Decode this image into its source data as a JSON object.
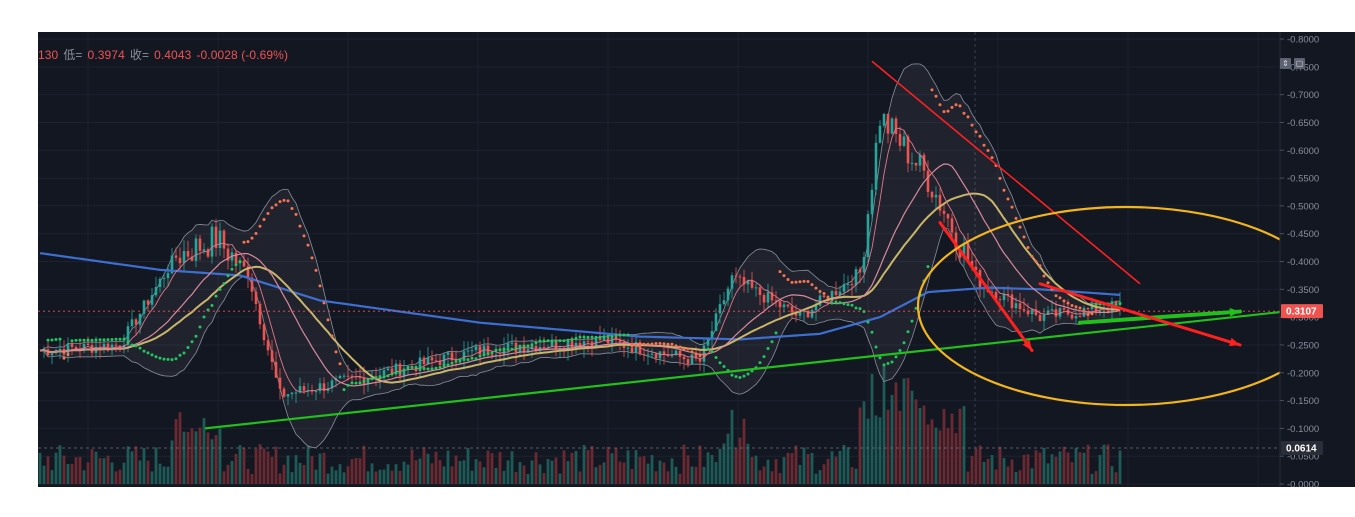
{
  "legend": {
    "open_partial": "130",
    "low_label": "低=",
    "low_value": "0.3974",
    "close_label": "收=",
    "close_value": "0.4043",
    "change": "-0.0028 (-0.69%)"
  },
  "pane_buttons": [
    "⇕",
    "▢"
  ],
  "price_badge": {
    "value": "0.3107",
    "color": "#ef5350"
  },
  "volume_badge": {
    "value": "0.0614",
    "color": "#2a2e39"
  },
  "colors": {
    "background": "#131722",
    "up": "#26a69a",
    "down": "#ef5350",
    "ma_long": "#3d6fd1",
    "ma_mid": "#c9b56a",
    "ma_short": "#d88a9a",
    "bollinger": "#8a8f9c",
    "support_line": "#21c01b",
    "trend_arrow": "#ff2020",
    "ellipse": "#f2b51b"
  },
  "chart_data": {
    "type": "candlestick",
    "title": "",
    "y_axis": {
      "ticks": [
        "0.8000",
        "0.7500",
        "0.7000",
        "0.6500",
        "0.6000",
        "0.5500",
        "0.5000",
        "0.4500",
        "0.4000",
        "0.3500",
        "0.3000",
        "0.2500",
        "0.2000",
        "0.1500",
        "0.1000",
        "0.0500",
        "0.0000"
      ],
      "range": [
        0.0,
        0.8
      ]
    },
    "last_price": 0.3107,
    "volume_marker": 0.0614,
    "series": [
      {
        "name": "",
        "type": "ohlc",
        "key_points": [
          {
            "t": 0,
            "close": 0.24
          },
          {
            "t": 20,
            "close": 0.25
          },
          {
            "t": 34,
            "close": 0.41
          },
          {
            "t": 44,
            "close": 0.44
          },
          {
            "t": 52,
            "close": 0.38
          },
          {
            "t": 60,
            "close": 0.16
          },
          {
            "t": 80,
            "close": 0.19
          },
          {
            "t": 110,
            "close": 0.24
          },
          {
            "t": 140,
            "close": 0.26
          },
          {
            "t": 165,
            "close": 0.22
          },
          {
            "t": 173,
            "close": 0.37
          },
          {
            "t": 190,
            "close": 0.3
          },
          {
            "t": 205,
            "close": 0.38
          },
          {
            "t": 210,
            "close": 0.66
          },
          {
            "t": 222,
            "close": 0.55
          },
          {
            "t": 235,
            "close": 0.36
          },
          {
            "t": 250,
            "close": 0.3
          },
          {
            "t": 270,
            "close": 0.32
          }
        ]
      }
    ],
    "annotations": {
      "support_line": {
        "from": [
          0,
          0.1
        ],
        "to": [
          300,
          0.31
        ]
      },
      "trend_line": {
        "from": [
          208,
          0.76
        ],
        "to": [
          275,
          0.36
        ]
      },
      "arrow_down_steep": {
        "from": [
          225,
          0.47
        ],
        "to": [
          248,
          0.24
        ]
      },
      "arrow_down_shallow": {
        "from": [
          250,
          0.36
        ],
        "to": [
          300,
          0.25
        ]
      },
      "arrow_up": {
        "from": [
          260,
          0.29
        ],
        "to": [
          300,
          0.31
        ]
      },
      "highlight": "ellipse"
    }
  }
}
